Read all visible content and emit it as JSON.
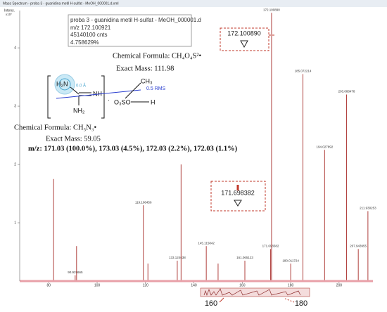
{
  "window_title": "Mass Spectrum - proba 3 - guanidina metil H-sulfat - MeOH_000001.d.xml",
  "tooltip": {
    "title": "proba 3 - guanidina metil H-sulfat - MeOH_000001.d",
    "mz": "m/z 172.100921",
    "counts": "45140100 cnts",
    "percent": "4.758629%"
  },
  "callouts": [
    "172.100890",
    "171.698382"
  ],
  "formula_1": {
    "formula": "Chemical Formula: CH₄O₄S²•",
    "mass": "Exact Mass: 111.98"
  },
  "formula_2": {
    "formula": "Chemical Formula: CH₅N₃•",
    "mass": "Exact Mass: 59.05"
  },
  "isotopes": "m/z: 171.03 (100.0%), 173.03 (4.5%), 172.03 (2.2%), 172.03 (1.1%)",
  "structure": {
    "h2n": "H₂N",
    "nh": "NH",
    "nh2": "NH₂",
    "dot": "·",
    "o3so": "O₃SO",
    "h": "H",
    "ch3": "CH₃",
    "angstrom": "0.0 Å",
    "rms": "0.5 RMS"
  },
  "zoom": {
    "left": "160",
    "right": "180"
  },
  "chart_data": {
    "type": "bar",
    "y_label": "Intens.",
    "y_unit": "x10⁷",
    "x": [
      82,
      90.928665,
      91.5,
      119.108456,
      121,
      133.124638,
      134.7,
      145.115842,
      150,
      161.065123,
      171.698382,
      172.10089,
      180.011724,
      185.072214,
      194.027892,
      203.088478,
      207.943955,
      211.930253
    ],
    "x_labels": [
      null,
      "90.928665",
      null,
      "119.108456",
      null,
      "133.124638",
      null,
      "145.115842",
      null,
      "161.065123",
      "171.698382",
      "172.100890",
      "180.011724",
      "185.072214",
      "194.027892",
      "203.088478",
      "207.943955",
      "211.930253"
    ],
    "values": [
      1.75,
      0.1,
      0.6,
      1.3,
      0.3,
      0.35,
      2.0,
      0.6,
      0.3,
      0.35,
      0.55,
      4.6,
      0.3,
      3.55,
      2.25,
      3.2,
      0.55,
      1.2
    ],
    "color": "#b0413e",
    "xlim": [
      68,
      214
    ],
    "xticks": [
      80,
      100,
      120,
      140,
      160,
      180,
      200
    ],
    "ylim": [
      0,
      4.7
    ],
    "yticks": [
      1,
      2,
      3,
      4
    ]
  }
}
